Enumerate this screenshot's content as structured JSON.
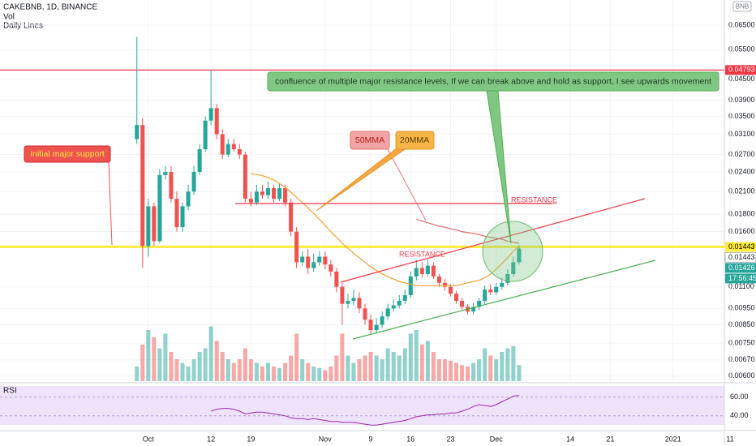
{
  "chart_data": {
    "type": "candlestick",
    "title": "CAKEBNB, 1D, BINANCE",
    "subtitle_lines": [
      "Vol",
      "Daily Lines"
    ],
    "quote": "BNB",
    "x": [
      "2020-09-29",
      "2020-09-30",
      "2020-10-01",
      "2020-10-02",
      "2020-10-03",
      "2020-10-04",
      "2020-10-05",
      "2020-10-06",
      "2020-10-07",
      "2020-10-08",
      "2020-10-09",
      "2020-10-10",
      "2020-10-11",
      "2020-10-12",
      "2020-10-13",
      "2020-10-14",
      "2020-10-15",
      "2020-10-16",
      "2020-10-17",
      "2020-10-18",
      "2020-10-19",
      "2020-10-20",
      "2020-10-21",
      "2020-10-22",
      "2020-10-23",
      "2020-10-24",
      "2020-10-25",
      "2020-10-26",
      "2020-10-27",
      "2020-10-28",
      "2020-10-29",
      "2020-10-30",
      "2020-10-31",
      "2020-11-01",
      "2020-11-02",
      "2020-11-03",
      "2020-11-04",
      "2020-11-05",
      "2020-11-06",
      "2020-11-07",
      "2020-11-08",
      "2020-11-09",
      "2020-11-10",
      "2020-11-11",
      "2020-11-12",
      "2020-11-13",
      "2020-11-14",
      "2020-11-15",
      "2020-11-16",
      "2020-11-17",
      "2020-11-18",
      "2020-11-19",
      "2020-11-20",
      "2020-11-21",
      "2020-11-22",
      "2020-11-23",
      "2020-11-24",
      "2020-11-25",
      "2020-11-26",
      "2020-11-27",
      "2020-11-28",
      "2020-11-29",
      "2020-11-30",
      "2020-12-01",
      "2020-12-02",
      "2020-12-03",
      "2020-12-04",
      "2020-12-05"
    ],
    "open": [
      0.03,
      0.033,
      0.0145,
      0.019,
      0.015,
      0.0235,
      0.024,
      0.02,
      0.0165,
      0.019,
      0.021,
      0.024,
      0.028,
      0.034,
      0.037,
      0.031,
      0.027,
      0.029,
      0.028,
      0.027,
      0.02,
      0.0195,
      0.021,
      0.0205,
      0.0215,
      0.02,
      0.0215,
      0.0195,
      0.016,
      0.013,
      0.0135,
      0.0125,
      0.013,
      0.0135,
      0.0128,
      0.0122,
      0.011,
      0.0098,
      0.01,
      0.0102,
      0.0095,
      0.0088,
      0.0082,
      0.0085,
      0.009,
      0.0095,
      0.0097,
      0.01,
      0.0104,
      0.0118,
      0.0125,
      0.012,
      0.0127,
      0.0118,
      0.0113,
      0.011,
      0.0105,
      0.01,
      0.0096,
      0.0093,
      0.0096,
      0.01,
      0.0108,
      0.0106,
      0.011,
      0.0113,
      0.012,
      0.013
    ],
    "high": [
      0.06,
      0.0345,
      0.02,
      0.0195,
      0.0245,
      0.025,
      0.025,
      0.021,
      0.0195,
      0.022,
      0.025,
      0.029,
      0.035,
      0.048,
      0.038,
      0.032,
      0.03,
      0.03,
      0.029,
      0.0275,
      0.021,
      0.022,
      0.022,
      0.0225,
      0.022,
      0.0222,
      0.022,
      0.02,
      0.0165,
      0.014,
      0.0142,
      0.0138,
      0.014,
      0.014,
      0.0132,
      0.0125,
      0.0113,
      0.0105,
      0.0108,
      0.0106,
      0.0098,
      0.0091,
      0.0089,
      0.0093,
      0.0098,
      0.0101,
      0.0104,
      0.0108,
      0.0122,
      0.0132,
      0.013,
      0.0132,
      0.013,
      0.012,
      0.0116,
      0.0112,
      0.0107,
      0.0102,
      0.0098,
      0.0099,
      0.0102,
      0.0111,
      0.0112,
      0.0113,
      0.0117,
      0.0124,
      0.0135,
      0.0146
    ],
    "low": [
      0.029,
      0.0125,
      0.0135,
      0.0145,
      0.0148,
      0.0228,
      0.0195,
      0.016,
      0.016,
      0.0185,
      0.0205,
      0.0235,
      0.0275,
      0.033,
      0.03,
      0.0262,
      0.0265,
      0.0275,
      0.0262,
      0.0195,
      0.019,
      0.0192,
      0.02,
      0.02,
      0.0195,
      0.0197,
      0.019,
      0.0155,
      0.0125,
      0.0127,
      0.012,
      0.0122,
      0.0127,
      0.0124,
      0.0118,
      0.0106,
      0.0085,
      0.0095,
      0.0097,
      0.0092,
      0.0085,
      0.008,
      0.008,
      0.0083,
      0.0088,
      0.0093,
      0.0095,
      0.0098,
      0.0102,
      0.0115,
      0.0117,
      0.0118,
      0.0116,
      0.011,
      0.0107,
      0.0103,
      0.0098,
      0.0094,
      0.0091,
      0.0091,
      0.0094,
      0.0098,
      0.0104,
      0.0104,
      0.0108,
      0.0111,
      0.0118,
      0.0128
    ],
    "close": [
      0.033,
      0.0145,
      0.019,
      0.015,
      0.0235,
      0.024,
      0.02,
      0.0165,
      0.019,
      0.021,
      0.024,
      0.028,
      0.034,
      0.037,
      0.031,
      0.027,
      0.029,
      0.028,
      0.027,
      0.02,
      0.0195,
      0.021,
      0.0205,
      0.0215,
      0.02,
      0.0215,
      0.0195,
      0.016,
      0.013,
      0.0135,
      0.0125,
      0.013,
      0.0135,
      0.0128,
      0.0122,
      0.011,
      0.0098,
      0.01,
      0.0102,
      0.0095,
      0.0088,
      0.0082,
      0.0085,
      0.009,
      0.0095,
      0.0097,
      0.01,
      0.0104,
      0.0118,
      0.0125,
      0.012,
      0.0127,
      0.0118,
      0.0113,
      0.011,
      0.0105,
      0.01,
      0.0096,
      0.0093,
      0.0096,
      0.01,
      0.0108,
      0.0106,
      0.011,
      0.0113,
      0.012,
      0.013,
      0.01426
    ],
    "volume": [
      20,
      50,
      70,
      60,
      45,
      65,
      40,
      30,
      25,
      20,
      30,
      40,
      45,
      75,
      55,
      40,
      30,
      25,
      30,
      45,
      30,
      25,
      20,
      25,
      20,
      18,
      25,
      35,
      65,
      30,
      25,
      20,
      18,
      15,
      20,
      35,
      65,
      35,
      25,
      30,
      35,
      40,
      35,
      30,
      45,
      40,
      35,
      45,
      65,
      70,
      50,
      55,
      40,
      30,
      30,
      28,
      25,
      22,
      20,
      25,
      30,
      45,
      35,
      30,
      40,
      45,
      48,
      22
    ],
    "vlim": [
      0,
      100
    ],
    "up_color": "#26a69a",
    "down_color": "#ef5350",
    "log_scale": true,
    "grid": true,
    "ylim": [
      0.0058,
      0.0771
    ],
    "yticks": [
      {
        "value": 0.065,
        "label": "0.06500"
      },
      {
        "value": 0.055,
        "label": "0.05500"
      },
      {
        "value": 0.045,
        "label": "0.04500"
      },
      {
        "value": 0.039,
        "label": "0.03900"
      },
      {
        "value": 0.035,
        "label": "0.03500"
      },
      {
        "value": 0.031,
        "label": "0.03100"
      },
      {
        "value": 0.027,
        "label": "0.02700"
      },
      {
        "value": 0.024,
        "label": "0.02400"
      },
      {
        "value": 0.021,
        "label": "0.02100"
      },
      {
        "value": 0.018,
        "label": "0.01800"
      },
      {
        "value": 0.016,
        "label": "0.01600"
      },
      {
        "value": 0.011,
        "label": "0.01100"
      },
      {
        "value": 0.0095,
        "label": "0.00950"
      },
      {
        "value": 0.0085,
        "label": "0.00850"
      },
      {
        "value": 0.0075,
        "label": "0.00750"
      },
      {
        "value": 0.0067,
        "label": "0.00670"
      },
      {
        "value": 0.006,
        "label": "0.00600"
      }
    ],
    "xlim": [
      "2020-09-05",
      "2021-01-10"
    ],
    "xticks": [
      {
        "value": "2020-10-01",
        "label": "Oct"
      },
      {
        "value": "2020-10-12",
        "label": "12"
      },
      {
        "value": "2020-10-19",
        "label": "19"
      },
      {
        "value": "2020-11-01",
        "label": "Nov"
      },
      {
        "value": "2020-11-09",
        "label": "9"
      },
      {
        "value": "2020-11-16",
        "label": "16"
      },
      {
        "value": "2020-11-23",
        "label": "23"
      },
      {
        "value": "2020-12-01",
        "label": "Dec"
      },
      {
        "value": "2020-12-14",
        "label": "14"
      },
      {
        "value": "2020-12-21",
        "label": "21"
      },
      {
        "value": "2021-01-01",
        "label": "2021"
      },
      {
        "value": "2021-01-11",
        "label": "11"
      }
    ],
    "ma": [
      {
        "name": "20MMA",
        "color": "#f5a742",
        "values": [
          null,
          null,
          null,
          null,
          null,
          null,
          null,
          null,
          null,
          null,
          null,
          null,
          null,
          null,
          null,
          null,
          null,
          null,
          null,
          null,
          0.0237,
          0.0236,
          0.0234,
          0.0231,
          0.0227,
          0.0222,
          0.0216,
          0.0209,
          0.0202,
          0.0195,
          0.0188,
          0.0181,
          0.0174,
          0.0167,
          0.016,
          0.0154,
          0.0148,
          0.0143,
          0.0138,
          0.0134,
          0.013,
          0.0126,
          0.0123,
          0.012,
          0.0118,
          0.0116,
          0.0114,
          0.0113,
          0.0112,
          0.0111,
          0.0111,
          0.0111,
          0.0111,
          0.0111,
          0.0111,
          0.0111,
          0.0111,
          0.0112,
          0.0113,
          0.0114,
          0.0115,
          0.0117,
          0.012,
          0.0124,
          0.0129,
          0.0134,
          0.014,
          0.0145
        ]
      },
      {
        "name": "50MMA",
        "color": "#e57373",
        "values": [
          null,
          null,
          null,
          null,
          null,
          null,
          null,
          null,
          null,
          null,
          null,
          null,
          null,
          null,
          null,
          null,
          null,
          null,
          null,
          null,
          null,
          null,
          null,
          null,
          null,
          null,
          null,
          null,
          null,
          null,
          null,
          null,
          null,
          null,
          null,
          null,
          null,
          null,
          null,
          null,
          null,
          null,
          null,
          null,
          null,
          null,
          null,
          null,
          null,
          0.0174,
          0.0172,
          0.017,
          0.0168,
          0.0166,
          0.0165,
          0.0163,
          0.0162,
          0.016,
          0.0159,
          0.0158,
          0.0157,
          0.0155,
          0.0154,
          0.0153,
          0.0152,
          0.015,
          0.0149,
          0.0148
        ]
      }
    ],
    "hlines": [
      {
        "value": 0.04793,
        "color": "#f23645"
      },
      {
        "value": 0.01443,
        "color": "#ffeb3b"
      }
    ],
    "price_tags": [
      {
        "value": 0.04793,
        "label": "0.04793",
        "bg": "#f23645",
        "fg": "#ffffff"
      },
      {
        "value": 0.01443,
        "label": "0.01443",
        "bg": "#ffeb3b",
        "fg": "#000000"
      },
      {
        "value": 0.01443,
        "label": "0.01443",
        "bg": "#ffffff",
        "fg": "#131722"
      },
      {
        "value": 0.01426,
        "label": "0.01426",
        "bg": "#26a69a",
        "fg": "#ffffff"
      },
      {
        "label": "17:56:45",
        "bg": "#26a69a",
        "fg": "#ffffff"
      }
    ],
    "rsi": {
      "label": "RSI",
      "color": "#9c27b0",
      "ylim": [
        25,
        72
      ],
      "yticks": [
        {
          "value": 60,
          "label": "60.00"
        },
        {
          "value": 40,
          "label": "40.00"
        }
      ],
      "values": [
        null,
        null,
        null,
        null,
        null,
        null,
        null,
        null,
        null,
        null,
        null,
        null,
        null,
        45,
        47,
        48,
        48,
        47,
        45,
        42,
        43,
        44,
        44,
        43,
        42,
        41,
        40,
        38,
        37,
        37,
        36,
        37,
        36,
        35,
        34,
        34,
        33,
        33,
        33,
        32,
        31,
        30,
        30,
        31,
        32,
        33,
        34,
        35,
        37,
        39,
        40,
        41,
        41,
        42,
        42,
        43,
        43,
        45,
        47,
        50,
        52,
        51,
        50,
        52,
        55,
        58,
        61,
        62
      ]
    },
    "annotations": {
      "support": "Initial major support",
      "resistance_upper": "RESISTANCE",
      "resistance_lower": "RESISTANCE",
      "note": "confluence of multiple major resistance levels, If we can break above and hold as support, I see upwards movement"
    }
  }
}
